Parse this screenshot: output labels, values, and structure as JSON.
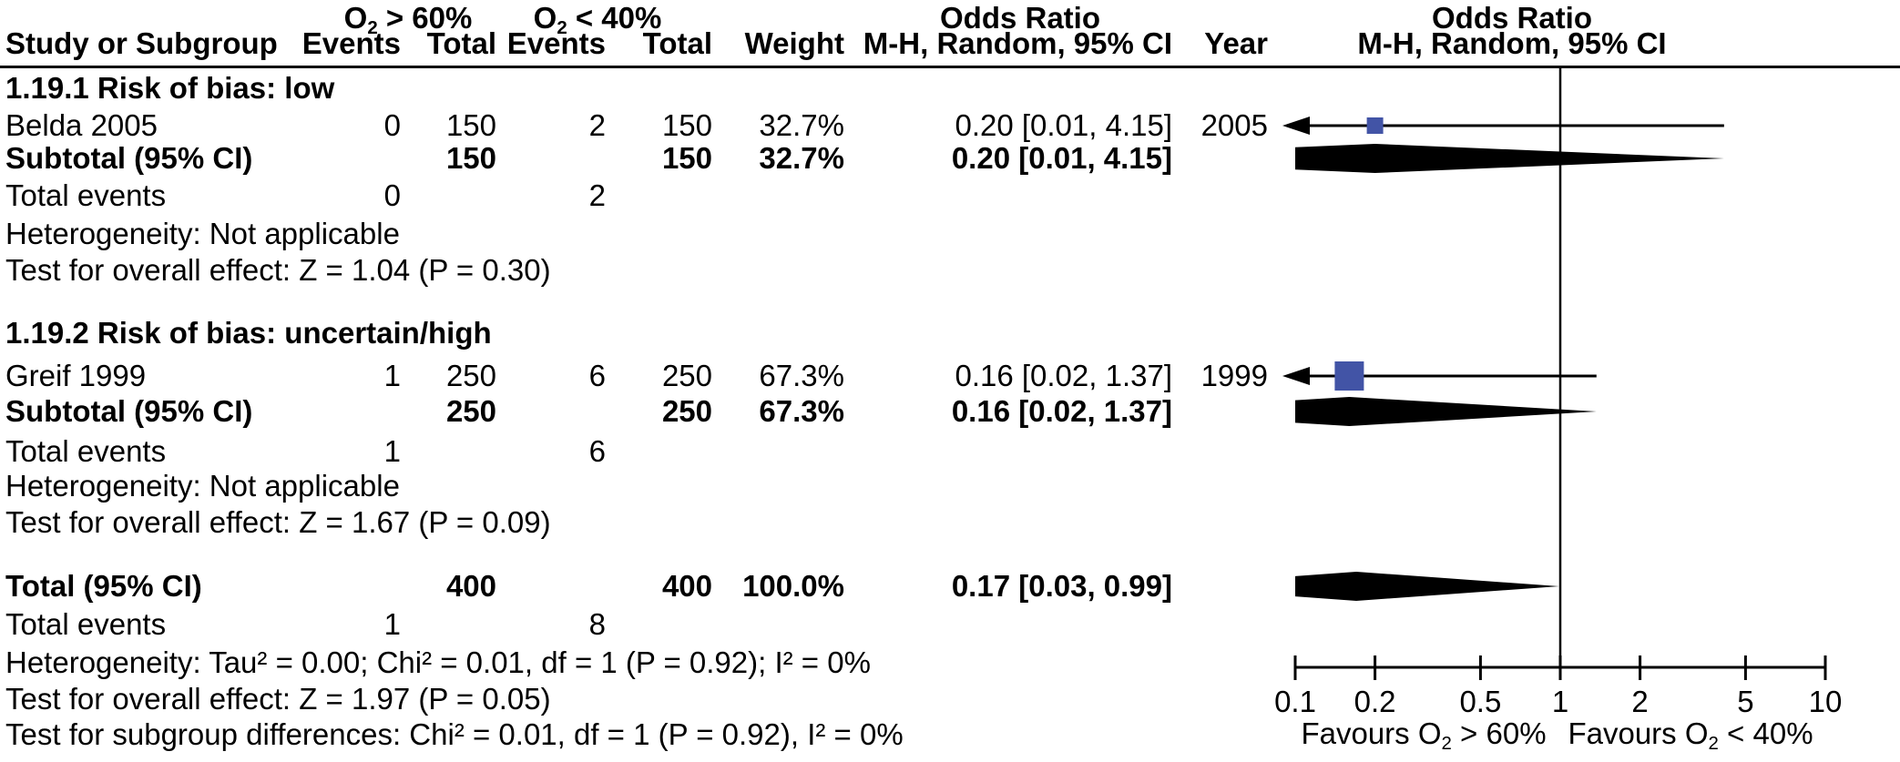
{
  "header": {
    "group1": {
      "pre": "O",
      "sub": "2",
      "post": " > 60%"
    },
    "group2": {
      "pre": "O",
      "sub": "2",
      "post": " < 40%"
    },
    "odds_ratio_left_line1": "Odds Ratio",
    "odds_ratio_left_line2": "M-H, Random, 95% CI",
    "odds_ratio_right_line1": "Odds Ratio",
    "odds_ratio_right_line2": "M-H, Random, 95% CI",
    "col_study": "Study or Subgroup",
    "col_events": "Events",
    "col_total": "Total",
    "col_weight": "Weight",
    "col_year": "Year"
  },
  "section1": {
    "title": "1.19.1 Risk of bias: low",
    "study": {
      "name": "Belda 2005",
      "events1": "0",
      "total1": "150",
      "events2": "2",
      "total2": "150",
      "weight": "32.7%",
      "ci": "0.20 [0.01, 4.15]",
      "year": "2005"
    },
    "subtotal": {
      "label": "Subtotal (95% CI)",
      "total1": "150",
      "total2": "150",
      "weight": "32.7%",
      "ci": "0.20 [0.01, 4.15]"
    },
    "total_events": {
      "label": "Total events",
      "events1": "0",
      "events2": "2"
    },
    "heterogeneity": "Heterogeneity: Not applicable",
    "overall_effect": "Test for overall effect: Z = 1.04 (P = 0.30)"
  },
  "section2": {
    "title": "1.19.2 Risk of bias: uncertain/high",
    "study": {
      "name": "Greif 1999",
      "events1": "1",
      "total1": "250",
      "events2": "6",
      "total2": "250",
      "weight": "67.3%",
      "ci": "0.16 [0.02, 1.37]",
      "year": "1999"
    },
    "subtotal": {
      "label": "Subtotal (95% CI)",
      "total1": "250",
      "total2": "250",
      "weight": "67.3%",
      "ci": "0.16 [0.02, 1.37]"
    },
    "total_events": {
      "label": "Total events",
      "events1": "1",
      "events2": "6"
    },
    "heterogeneity": "Heterogeneity: Not applicable",
    "overall_effect": "Test for overall effect: Z = 1.67 (P = 0.09)"
  },
  "totals": {
    "total_row": {
      "label": "Total (95% CI)",
      "total1": "400",
      "total2": "400",
      "weight": "100.0%",
      "ci": "0.17 [0.03, 0.99]"
    },
    "total_events": {
      "label": "Total events",
      "events1": "1",
      "events2": "8"
    },
    "heterogeneity": "Heterogeneity: Tau² = 0.00; Chi² = 0.01, df = 1 (P = 0.92); I² = 0%",
    "overall_effect": "Test for overall effect: Z = 1.97 (P = 0.05)",
    "subgroup_differences": "Test for subgroup differences: Chi² = 0.01, df = 1 (P = 0.92), I² = 0%"
  },
  "chart_data": {
    "type": "forest",
    "x_scale": "log10",
    "xlim": [
      0.1,
      10
    ],
    "null_line": 1,
    "axis_ticks": [
      "0.1",
      "0.2",
      "0.5",
      "1",
      "2",
      "5",
      "10"
    ],
    "favours_left": {
      "pre": "Favours O",
      "sub": "2",
      "post": " > 60%"
    },
    "favours_right": {
      "pre": "Favours O",
      "sub": "2",
      "post": " < 40%"
    },
    "marker_color": "#4254A6",
    "line_color": "#000000",
    "markers": [
      {
        "kind": "square",
        "label": "Belda 2005",
        "row": "belda",
        "or": 0.2,
        "ci_low": 0.01,
        "ci_high": 4.15,
        "weight_pct": 32.7,
        "year": 2005
      },
      {
        "kind": "diamond",
        "label": "Subtotal 1.19.1 (95% CI)",
        "row": "subtotal1",
        "or": 0.2,
        "ci_low": 0.01,
        "ci_high": 4.15
      },
      {
        "kind": "square",
        "label": "Greif 1999",
        "row": "greif",
        "or": 0.16,
        "ci_low": 0.02,
        "ci_high": 1.37,
        "weight_pct": 67.3,
        "year": 1999
      },
      {
        "kind": "diamond",
        "label": "Subtotal 1.19.2 (95% CI)",
        "row": "subtotal2",
        "or": 0.16,
        "ci_low": 0.02,
        "ci_high": 1.37
      },
      {
        "kind": "diamond",
        "label": "Total (95% CI)",
        "row": "total",
        "or": 0.17,
        "ci_low": 0.03,
        "ci_high": 0.99
      }
    ]
  }
}
